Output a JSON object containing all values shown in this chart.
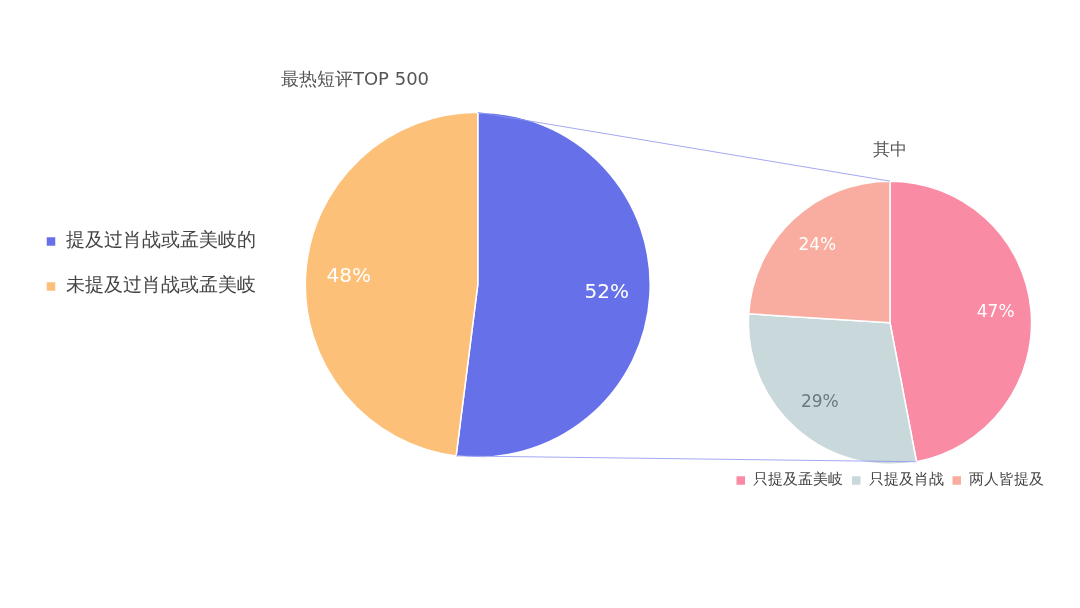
{
  "chart_data": [
    {
      "type": "pie",
      "title": "最热短评TOP 500",
      "categories": [
        "提及过肖战或孟美岐的",
        "未提及过肖战或孟美岐"
      ],
      "values": [
        52,
        48
      ],
      "colors": [
        "#6670e8",
        "#fdc078"
      ],
      "value_labels": [
        "52%",
        "48%"
      ],
      "legend": "left"
    },
    {
      "type": "pie",
      "title": "其中",
      "categories": [
        "只提及孟美岐",
        "只提及肖战",
        "两人皆提及"
      ],
      "values": [
        47,
        29,
        24
      ],
      "colors": [
        "#f98ba4",
        "#c9d8db",
        "#f9ada0"
      ],
      "value_labels": [
        "47%",
        "29%",
        "24%"
      ],
      "legend": "bottom"
    }
  ]
}
